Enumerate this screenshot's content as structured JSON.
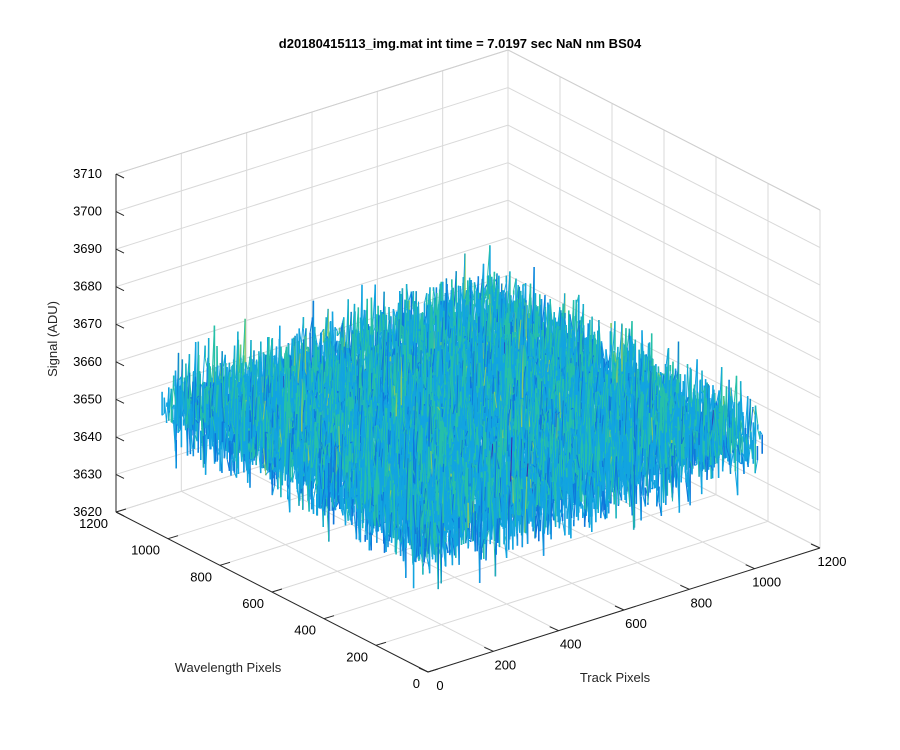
{
  "chart_data": {
    "type": "surface",
    "title": "d20180415113_img.mat int time = 7.0197 sec  NaN nm BS04",
    "xlabel": "Track Pixels",
    "ylabel": "Wavelength Pixels",
    "zlabel": "Signal (ADU)",
    "xlim": [
      0,
      1200
    ],
    "ylim": [
      0,
      1200
    ],
    "zlim": [
      3620,
      3710
    ],
    "xticks": [
      "0",
      "200",
      "400",
      "600",
      "800",
      "1000",
      "1200"
    ],
    "yticks": [
      "0",
      "200",
      "400",
      "600",
      "800",
      "1000",
      "1200"
    ],
    "zticks": [
      "3620",
      "3630",
      "3640",
      "3650",
      "3660",
      "3670",
      "3680",
      "3690",
      "3700",
      "3710"
    ],
    "data_extent": {
      "x": [
        1,
        1024
      ],
      "y": [
        1,
        1024
      ]
    },
    "signal": {
      "mean": 3655,
      "noise_range": [
        3625,
        3705
      ]
    },
    "colormap": [
      "#3e26a8",
      "#0f77db",
      "#12a4e0",
      "#26c0a8",
      "#86cb67",
      "#ddbd3c",
      "#f9d731"
    ],
    "grid": true
  }
}
